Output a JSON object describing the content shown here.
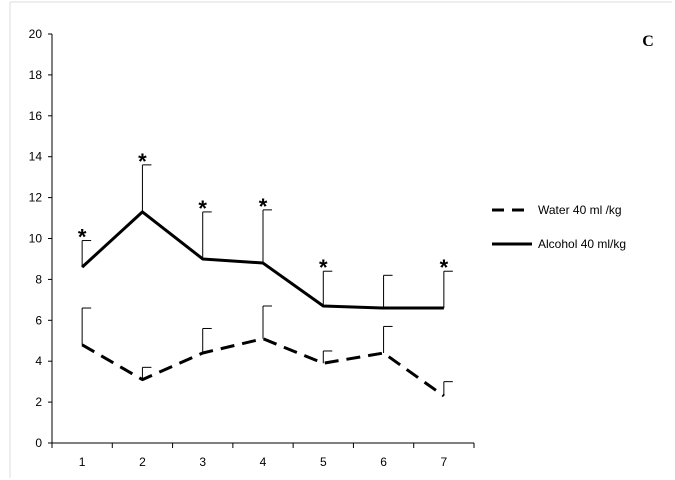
{
  "chart_data": {
    "type": "line",
    "panel_label": "C",
    "x": [
      1,
      2,
      3,
      4,
      5,
      6,
      7
    ],
    "x_tick_labels": [
      "1",
      "2",
      "3",
      "4",
      "5",
      "6",
      "7"
    ],
    "y_tick_labels": [
      "0",
      "2",
      "4",
      "6",
      "8",
      "10",
      "12",
      "14",
      "16",
      "18",
      "20"
    ],
    "ylim": [
      0,
      20
    ],
    "grid": false,
    "legend_position": "right",
    "series": [
      {
        "name": "Water 40 ml /kg",
        "style": "dashed",
        "color": "#000000",
        "values": [
          4.8,
          3.1,
          4.4,
          5.1,
          3.9,
          4.4,
          2.3
        ],
        "error_upper": [
          6.6,
          3.7,
          5.6,
          6.7,
          4.5,
          5.7,
          3.0
        ]
      },
      {
        "name": "Alcohol  40  ml/kg",
        "style": "solid",
        "color": "#000000",
        "values": [
          8.6,
          11.3,
          9.0,
          8.8,
          6.7,
          6.6,
          6.6
        ],
        "error_upper": [
          9.9,
          13.6,
          11.3,
          11.4,
          8.4,
          8.2,
          8.4
        ]
      }
    ],
    "annotations": {
      "symbol": "*",
      "x": [
        1,
        2,
        3,
        4,
        5,
        7
      ]
    }
  }
}
